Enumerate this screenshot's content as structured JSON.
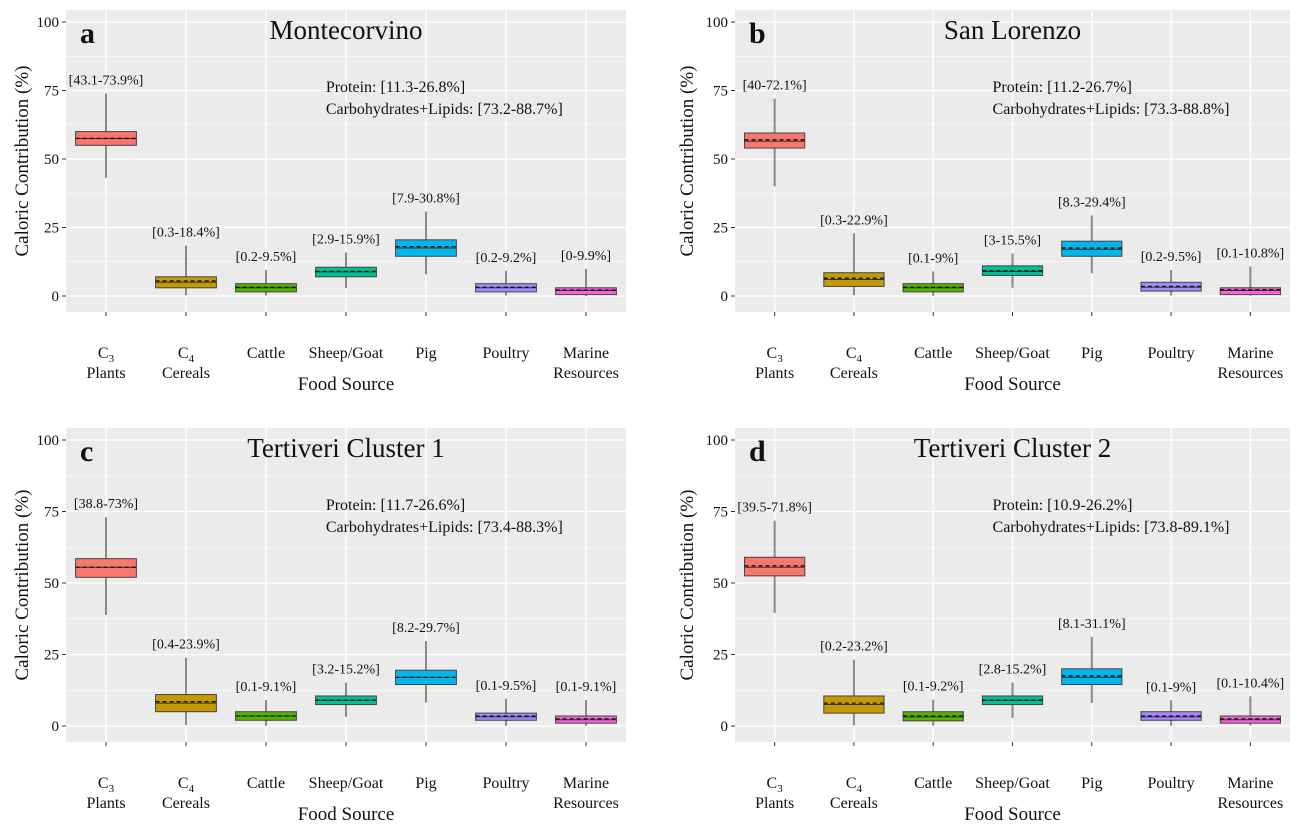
{
  "y_axis_label": "Caloric Contribution (%)",
  "x_axis_label": "Food Source",
  "y_ticks": [
    "0",
    "25",
    "50",
    "75",
    "100"
  ],
  "categories": [
    {
      "main": "C",
      "sub": "3",
      "second": "Plants"
    },
    {
      "main": "C",
      "sub": "4",
      "second": "Cereals"
    },
    {
      "main": "Cattle",
      "sub": "",
      "second": ""
    },
    {
      "main": "Sheep/Goat",
      "sub": "",
      "second": ""
    },
    {
      "main": "Pig",
      "sub": "",
      "second": ""
    },
    {
      "main": "Poultry",
      "sub": "",
      "second": ""
    },
    {
      "main": "Marine",
      "sub": "",
      "second": "Resources"
    }
  ],
  "colors": [
    "#f8766d",
    "#c49a00",
    "#53b400",
    "#00c094",
    "#00b6eb",
    "#a58aff",
    "#fb61d7"
  ],
  "chart_data": [
    {
      "type": "box",
      "letter": "a",
      "title": "Montecorvino",
      "protein": "Protein: [11.3-26.8%]",
      "carbs": "Carbohydrates+Lipids: [73.2-88.7%]",
      "ylim": [
        0,
        100
      ],
      "boxes": [
        {
          "label": "[43.1-73.9%]",
          "min": 43.1,
          "q1": 55,
          "median": 57.5,
          "mean": 57.5,
          "q3": 60,
          "max": 73.9
        },
        {
          "label": "[0.3-18.4%]",
          "min": 0.3,
          "q1": 3,
          "median": 5,
          "mean": 5.5,
          "q3": 7,
          "max": 18.4
        },
        {
          "label": "[0.2-9.5%]",
          "min": 0.2,
          "q1": 1.5,
          "median": 3,
          "mean": 3.2,
          "q3": 4.5,
          "max": 9.5
        },
        {
          "label": "[2.9-15.9%]",
          "min": 2.9,
          "q1": 7,
          "median": 8.8,
          "mean": 9,
          "q3": 10.5,
          "max": 15.9
        },
        {
          "label": "[7.9-30.8%]",
          "min": 7.9,
          "q1": 14.5,
          "median": 17.5,
          "mean": 18,
          "q3": 20.5,
          "max": 30.8
        },
        {
          "label": "[0.2-9.2%]",
          "min": 0.2,
          "q1": 1.5,
          "median": 3,
          "mean": 3.2,
          "q3": 4.5,
          "max": 9.2
        },
        {
          "label": "[0-9.9%]",
          "min": 0,
          "q1": 0.5,
          "median": 2,
          "mean": 2.2,
          "q3": 3,
          "max": 9.9
        }
      ]
    },
    {
      "type": "box",
      "letter": "b",
      "title": "San Lorenzo",
      "protein": "Protein: [11.2-26.7%]",
      "carbs": "Carbohydrates+Lipids: [73.3-88.8%]",
      "ylim": [
        0,
        100
      ],
      "boxes": [
        {
          "label": "[40-72.1%]",
          "min": 40,
          "q1": 54,
          "median": 56.5,
          "mean": 57,
          "q3": 59.5,
          "max": 72.1
        },
        {
          "label": "[0.3-22.9%]",
          "min": 0.3,
          "q1": 3.5,
          "median": 6,
          "mean": 6.5,
          "q3": 8.5,
          "max": 22.9
        },
        {
          "label": "[0.1-9%]",
          "min": 0.1,
          "q1": 1.5,
          "median": 3,
          "mean": 3.2,
          "q3": 4.5,
          "max": 9
        },
        {
          "label": "[3-15.5%]",
          "min": 3,
          "q1": 7.5,
          "median": 9,
          "mean": 9.2,
          "q3": 11,
          "max": 15.5
        },
        {
          "label": "[8.3-29.4%]",
          "min": 8.3,
          "q1": 14.5,
          "median": 17,
          "mean": 17.5,
          "q3": 20,
          "max": 29.4
        },
        {
          "label": "[0.2-9.5%]",
          "min": 0.2,
          "q1": 1.8,
          "median": 3.2,
          "mean": 3.5,
          "q3": 5,
          "max": 9.5
        },
        {
          "label": "[0.1-10.8%]",
          "min": 0.1,
          "q1": 0.5,
          "median": 2,
          "mean": 2.3,
          "q3": 3,
          "max": 10.8
        }
      ]
    },
    {
      "type": "box",
      "letter": "c",
      "title": "Tertiveri Cluster 1",
      "protein": "Protein: [11.7-26.6%]",
      "carbs": "Carbohydrates+Lipids: [73.4-88.3%]",
      "ylim": [
        0,
        100
      ],
      "boxes": [
        {
          "label": "[38.8-73%]",
          "min": 38.8,
          "q1": 52,
          "median": 55.5,
          "mean": 55.5,
          "q3": 58.5,
          "max": 73
        },
        {
          "label": "[0.4-23.9%]",
          "min": 0.4,
          "q1": 5,
          "median": 8,
          "mean": 8.5,
          "q3": 11,
          "max": 23.9
        },
        {
          "label": "[0.1-9.1%]",
          "min": 0.1,
          "q1": 2,
          "median": 3.5,
          "mean": 3.5,
          "q3": 5,
          "max": 9.1
        },
        {
          "label": "[3.2-15.2%]",
          "min": 3.2,
          "q1": 7.5,
          "median": 9,
          "mean": 9,
          "q3": 10.5,
          "max": 15.2
        },
        {
          "label": "[8.2-29.7%]",
          "min": 8.2,
          "q1": 14.5,
          "median": 17,
          "mean": 17,
          "q3": 19.5,
          "max": 29.7
        },
        {
          "label": "[0.1-9.5%]",
          "min": 0.1,
          "q1": 2,
          "median": 3.2,
          "mean": 3.5,
          "q3": 4.5,
          "max": 9.5
        },
        {
          "label": "[0.1-9.1%]",
          "min": 0.1,
          "q1": 1,
          "median": 2.2,
          "mean": 2.5,
          "q3": 3.5,
          "max": 9.1
        }
      ]
    },
    {
      "type": "box",
      "letter": "d",
      "title": "Tertiveri Cluster 2",
      "protein": "Protein: [10.9-26.2%]",
      "carbs": "Carbohydrates+Lipids: [73.8-89.1%]",
      "ylim": [
        0,
        100
      ],
      "boxes": [
        {
          "label": "[39.5-71.8%]",
          "min": 39.5,
          "q1": 52.5,
          "median": 55.5,
          "mean": 56,
          "q3": 59,
          "max": 71.8
        },
        {
          "label": "[0.2-23.2%]",
          "min": 0.2,
          "q1": 4.5,
          "median": 7.5,
          "mean": 8,
          "q3": 10.5,
          "max": 23.2
        },
        {
          "label": "[0.1-9.2%]",
          "min": 0.1,
          "q1": 1.8,
          "median": 3.2,
          "mean": 3.5,
          "q3": 5,
          "max": 9.2
        },
        {
          "label": "[2.8-15.2%]",
          "min": 2.8,
          "q1": 7.5,
          "median": 9,
          "mean": 9,
          "q3": 10.5,
          "max": 15.2
        },
        {
          "label": "[8.1-31.1%]",
          "min": 8.1,
          "q1": 14.5,
          "median": 17,
          "mean": 17.5,
          "q3": 20,
          "max": 31.1
        },
        {
          "label": "[0.1-9%]",
          "min": 0.1,
          "q1": 2,
          "median": 3.2,
          "mean": 3.5,
          "q3": 5,
          "max": 9
        },
        {
          "label": "[0.1-10.4%]",
          "min": 0.1,
          "q1": 1,
          "median": 2.2,
          "mean": 2.5,
          "q3": 3.5,
          "max": 10.4
        }
      ]
    }
  ]
}
